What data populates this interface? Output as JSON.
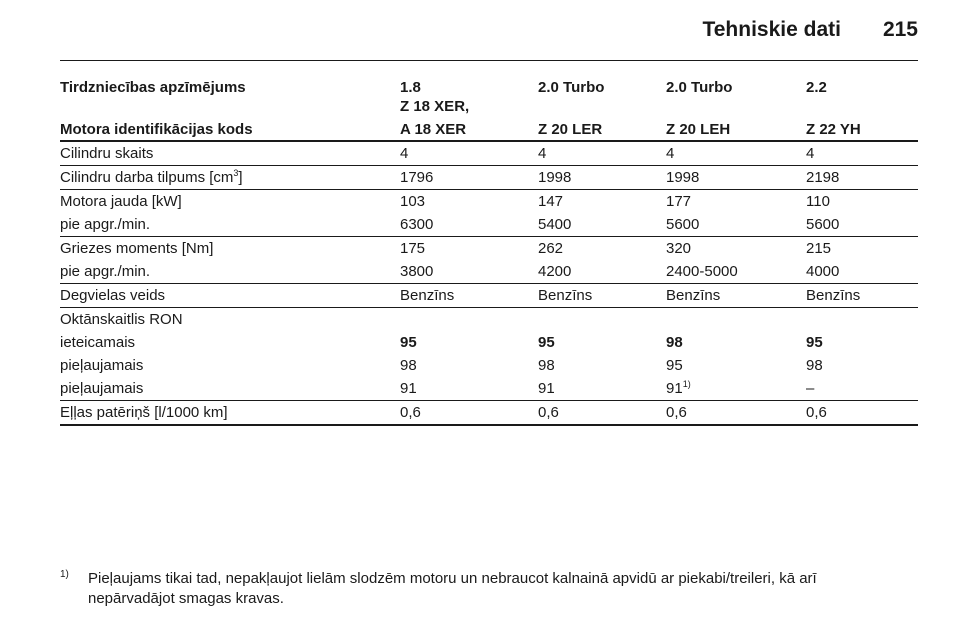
{
  "header": {
    "title": "Tehniskie dati",
    "page": "215"
  },
  "table": {
    "head": {
      "trade_name": [
        "Tirdzniecības apzīmējums",
        "1.8",
        "2.0 Turbo",
        "2.0 Turbo",
        "2.2"
      ],
      "engine_code_note": "Z 18 XER,",
      "engine_code": [
        "Motora identifikācijas kods",
        "A 18 XER",
        "Z 20 LER",
        "Z 20 LEH",
        "Z 22 YH"
      ]
    },
    "groups": [
      {
        "rows": [
          {
            "cells": [
              "Cilindru skaits",
              "4",
              "4",
              "4",
              "4"
            ]
          }
        ]
      },
      {
        "rows": [
          {
            "cells": [
              {
                "text": "Cilindru darba tilpums [cm",
                "sup": "3",
                "tail": "]"
              },
              "1796",
              "1998",
              "1998",
              "2198"
            ]
          }
        ]
      },
      {
        "rows": [
          {
            "cells": [
              "Motora jauda [kW]",
              "103",
              "147",
              "177",
              "110"
            ]
          },
          {
            "cells": [
              "pie apgr./min.",
              "6300",
              "5400",
              "5600",
              "5600"
            ]
          }
        ]
      },
      {
        "rows": [
          {
            "cells": [
              "Griezes moments [Nm]",
              "175",
              "262",
              "320",
              "215"
            ]
          },
          {
            "cells": [
              "pie apgr./min.",
              "3800",
              "4200",
              "2400-5000",
              "4000"
            ]
          }
        ]
      },
      {
        "rows": [
          {
            "cells": [
              "Degvielas veids",
              "Benzīns",
              "Benzīns",
              "Benzīns",
              "Benzīns"
            ]
          }
        ]
      },
      {
        "rows": [
          {
            "cells": [
              "Oktānskaitlis RON"
            ]
          },
          {
            "cells": [
              "ieteicamais",
              "95",
              "95",
              "98",
              "95"
            ],
            "bold": true
          },
          {
            "cells": [
              "pieļaujamais",
              "98",
              "98",
              "95",
              "98"
            ]
          },
          {
            "cells": [
              "pieļaujamais",
              "91",
              "91",
              {
                "text": "91",
                "sup": "1)"
              },
              "–"
            ]
          }
        ]
      },
      {
        "rows": [
          {
            "cells": [
              "Eļļas patēriņš [l/1000 km]",
              "0,6",
              "0,6",
              "0,6",
              "0,6"
            ]
          }
        ]
      }
    ]
  },
  "footnote": {
    "mark": "1)",
    "lines": [
      "Pieļaujams tikai tad, nepakļaujot lielām slodzēm motoru un nebraucot kalnainā apvidū ar piekabi/treileri, kā arī",
      "nepārvadājot smagas kravas."
    ]
  }
}
